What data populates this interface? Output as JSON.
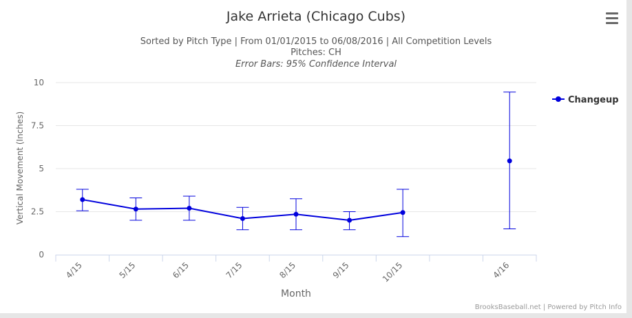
{
  "chart_data": {
    "type": "line",
    "title": "Jake Arrieta (Chicago Cubs)",
    "subtitle_lines": [
      "Sorted by Pitch Type | From 01/01/2015 to 06/08/2016 | All Competition Levels",
      "Pitches: CH"
    ],
    "subtitle_italic": "Error Bars: 95% Confidence Interval",
    "xlabel": "Month",
    "ylabel": "Vertical Movement (Inches)",
    "ylim": [
      0,
      10
    ],
    "yticks": [
      "0",
      "2.5",
      "5",
      "7.5",
      "10"
    ],
    "categories": [
      "4/15",
      "5/15",
      "6/15",
      "7/15",
      "8/15",
      "9/15",
      "10/15",
      "",
      "4/16"
    ],
    "grid": true,
    "legend_position": "right",
    "series": [
      {
        "name": "Changeup",
        "color": "#0000dd",
        "values": [
          3.2,
          2.65,
          2.7,
          2.1,
          2.35,
          2.0,
          2.45,
          null,
          5.45
        ],
        "error_low": [
          2.55,
          2.0,
          2.0,
          1.45,
          1.45,
          1.45,
          1.05,
          null,
          1.5
        ],
        "error_high": [
          3.8,
          3.3,
          3.4,
          2.75,
          3.25,
          2.5,
          3.8,
          null,
          9.45
        ]
      }
    ],
    "credits": "BrooksBaseball.net | Powered by Pitch Info"
  }
}
